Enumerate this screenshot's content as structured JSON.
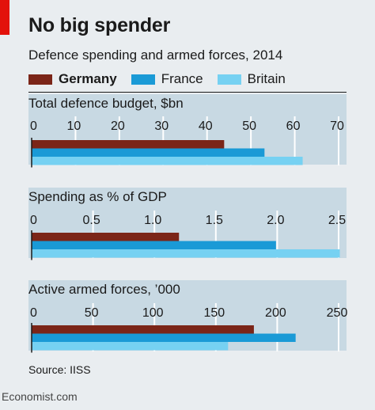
{
  "title": "No big spender",
  "subtitle": "Defence spending and armed forces, 2014",
  "source": "Source: IISS",
  "brand": "Economist.com",
  "legend": [
    {
      "label": "Germany",
      "color": "#7b2518",
      "bold": true
    },
    {
      "label": "France",
      "color": "#1a9ad6",
      "bold": false
    },
    {
      "label": "Britain",
      "color": "#76d1f2",
      "bold": false
    }
  ],
  "chart_data": [
    {
      "type": "bar",
      "title": "Total defence budget, $bn",
      "orientation": "horizontal",
      "xlim": [
        0,
        70
      ],
      "ticks": [
        0,
        10,
        20,
        30,
        40,
        50,
        60,
        70
      ],
      "tick_labels": [
        "0",
        "10",
        "20",
        "30",
        "40",
        "50",
        "60",
        "70"
      ],
      "series": [
        {
          "name": "Germany",
          "value": 43.9
        },
        {
          "name": "France",
          "value": 53.1
        },
        {
          "name": "Britain",
          "value": 61.8
        }
      ]
    },
    {
      "type": "bar",
      "title": "Spending as % of GDP",
      "orientation": "horizontal",
      "xlim": [
        0,
        2.5
      ],
      "ticks": [
        0,
        0.5,
        1.0,
        1.5,
        2.0,
        2.5
      ],
      "tick_labels": [
        "0",
        "0.5",
        "1.0",
        "1.5",
        "2.0",
        "2.5"
      ],
      "series": [
        {
          "name": "Germany",
          "value": 1.2
        },
        {
          "name": "France",
          "value": 1.99
        },
        {
          "name": "Britain",
          "value": 2.51
        }
      ]
    },
    {
      "type": "bar",
      "title": "Active armed forces, ’000",
      "orientation": "horizontal",
      "xlim": [
        0,
        250
      ],
      "ticks": [
        0,
        50,
        100,
        150,
        200,
        250
      ],
      "tick_labels": [
        "0",
        "50",
        "100",
        "150",
        "200",
        "250"
      ],
      "series": [
        {
          "name": "Germany",
          "value": 181
        },
        {
          "name": "France",
          "value": 215
        },
        {
          "name": "Britain",
          "value": 160
        }
      ]
    }
  ]
}
